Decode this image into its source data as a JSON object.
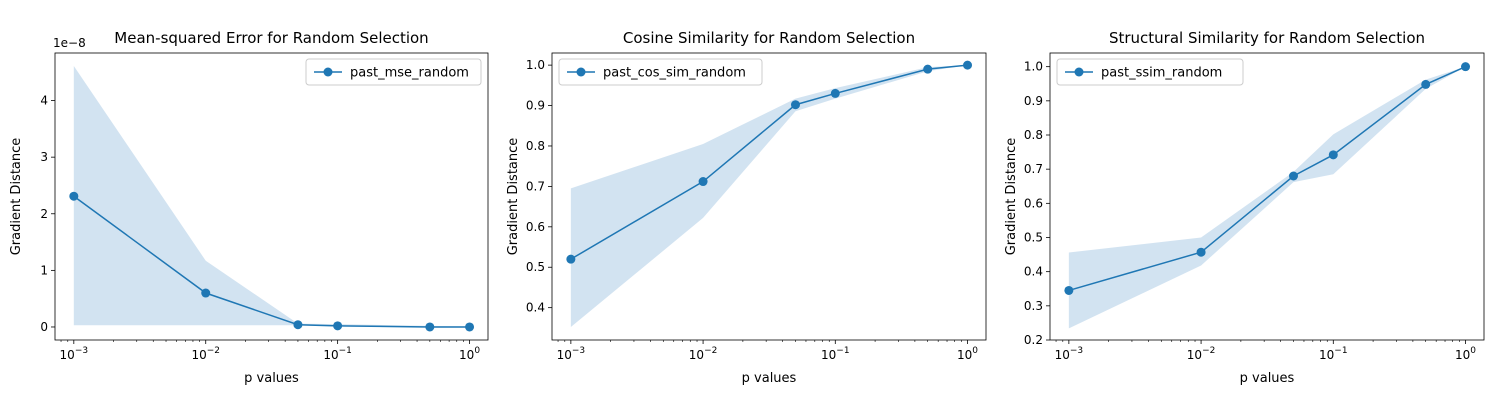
{
  "chart_data": [
    {
      "type": "line",
      "title": "Mean-squared Error for Random Selection",
      "xlabel": "p values",
      "ylabel": "Gradient Distance",
      "xscale": "log",
      "x_tick_labels": [
        "10^-3",
        "10^-2",
        "10^-1",
        "10^0"
      ],
      "y_tick_labels": [
        "0",
        "1",
        "2",
        "3",
        "4"
      ],
      "y_offset_label": "1e-8",
      "ylim": [
        -2.3e-09,
        4.84e-08
      ],
      "grid": false,
      "legend_position": "top-right",
      "series": [
        {
          "name": "past_mse_random",
          "x": [
            0.001,
            0.01,
            0.05,
            0.1,
            0.5,
            1.0
          ],
          "y": [
            2.31e-08,
            6e-09,
            4e-10,
            2e-10,
            0.0,
            0.0
          ],
          "band_upper": [
            4.61e-08,
            1.17e-08,
            6e-10,
            5e-10,
            2e-10,
            1e-10
          ],
          "band_lower": [
            3e-10,
            3e-10,
            3e-10,
            1e-10,
            0.0,
            0.0
          ]
        }
      ]
    },
    {
      "type": "line",
      "title": "Cosine Similarity for Random Selection",
      "xlabel": "p values",
      "ylabel": "Gradient Distance",
      "xscale": "log",
      "x_tick_labels": [
        "10^-3",
        "10^-2",
        "10^-1",
        "10^0"
      ],
      "y_tick_labels": [
        "0.4",
        "0.5",
        "0.6",
        "0.7",
        "0.8",
        "0.9",
        "1.0"
      ],
      "ylim": [
        0.32,
        1.03
      ],
      "grid": false,
      "legend_position": "top-left",
      "series": [
        {
          "name": "past_cos_sim_random",
          "x": [
            0.001,
            0.01,
            0.05,
            0.1,
            0.5,
            1.0
          ],
          "y": [
            0.52,
            0.712,
            0.902,
            0.93,
            0.99,
            1.0
          ],
          "band_upper": [
            0.695,
            0.805,
            0.917,
            0.943,
            0.995,
            1.0
          ],
          "band_lower": [
            0.352,
            0.622,
            0.886,
            0.917,
            0.985,
            1.0
          ]
        }
      ]
    },
    {
      "type": "line",
      "title": "Structural Similarity for Random Selection",
      "xlabel": "p values",
      "ylabel": "Gradient Distance",
      "xscale": "log",
      "x_tick_labels": [
        "10^-3",
        "10^-2",
        "10^-1",
        "10^0"
      ],
      "y_tick_labels": [
        "0.2",
        "0.3",
        "0.4",
        "0.5",
        "0.6",
        "0.7",
        "0.8",
        "0.9",
        "1.0"
      ],
      "ylim": [
        0.2,
        1.04
      ],
      "grid": false,
      "legend_position": "top-left",
      "series": [
        {
          "name": "past_ssim_random",
          "x": [
            0.001,
            0.01,
            0.05,
            0.1,
            0.5,
            1.0
          ],
          "y": [
            0.345,
            0.457,
            0.68,
            0.742,
            0.948,
            1.0
          ],
          "band_upper": [
            0.456,
            0.5,
            0.692,
            0.802,
            0.962,
            1.0
          ],
          "band_lower": [
            0.234,
            0.418,
            0.662,
            0.685,
            0.935,
            1.0
          ]
        }
      ]
    }
  ],
  "colors": {
    "line": "#1f77b4",
    "band": "#a6c8e4",
    "axis": "#000000",
    "legend_border": "#cccccc"
  }
}
